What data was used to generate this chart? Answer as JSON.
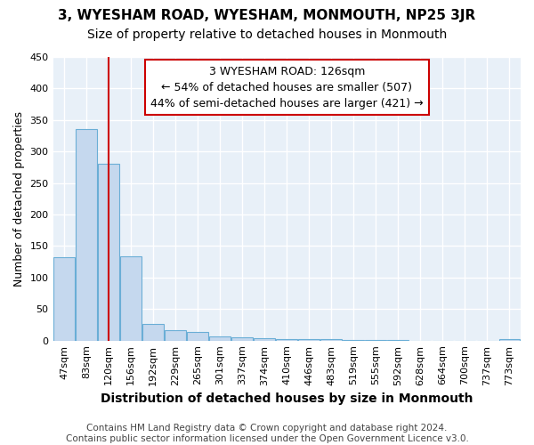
{
  "title": "3, WYESHAM ROAD, WYESHAM, MONMOUTH, NP25 3JR",
  "subtitle": "Size of property relative to detached houses in Monmouth",
  "xlabel": "Distribution of detached houses by size in Monmouth",
  "ylabel": "Number of detached properties",
  "categories": [
    "47sqm",
    "83sqm",
    "120sqm",
    "156sqm",
    "192sqm",
    "229sqm",
    "265sqm",
    "301sqm",
    "337sqm",
    "374sqm",
    "410sqm",
    "446sqm",
    "483sqm",
    "519sqm",
    "555sqm",
    "592sqm",
    "628sqm",
    "664sqm",
    "700sqm",
    "737sqm",
    "773sqm"
  ],
  "values": [
    132,
    335,
    280,
    133,
    27,
    17,
    13,
    7,
    5,
    4,
    3,
    2,
    2,
    1,
    1,
    1,
    0,
    0,
    0,
    0,
    2
  ],
  "bar_color": "#c5d8ee",
  "bar_edgecolor": "#6aaed6",
  "background_color": "#e8f0f8",
  "grid_color": "#ffffff",
  "annotation_line1": "3 WYESHAM ROAD: 126sqm",
  "annotation_line2": "← 54% of detached houses are smaller (507)",
  "annotation_line3": "44% of semi-detached houses are larger (421) →",
  "annotation_box_color": "#ffffff",
  "annotation_box_edgecolor": "#cc0000",
  "vline_x_index": 2.0,
  "vline_color": "#cc0000",
  "ylim": [
    0,
    450
  ],
  "yticks": [
    0,
    50,
    100,
    150,
    200,
    250,
    300,
    350,
    400,
    450
  ],
  "footnote_line1": "Contains HM Land Registry data © Crown copyright and database right 2024.",
  "footnote_line2": "Contains public sector information licensed under the Open Government Licence v3.0.",
  "title_fontsize": 11,
  "subtitle_fontsize": 10,
  "xlabel_fontsize": 10,
  "ylabel_fontsize": 9,
  "tick_fontsize": 8,
  "annot_fontsize": 9,
  "footnote_fontsize": 7.5
}
